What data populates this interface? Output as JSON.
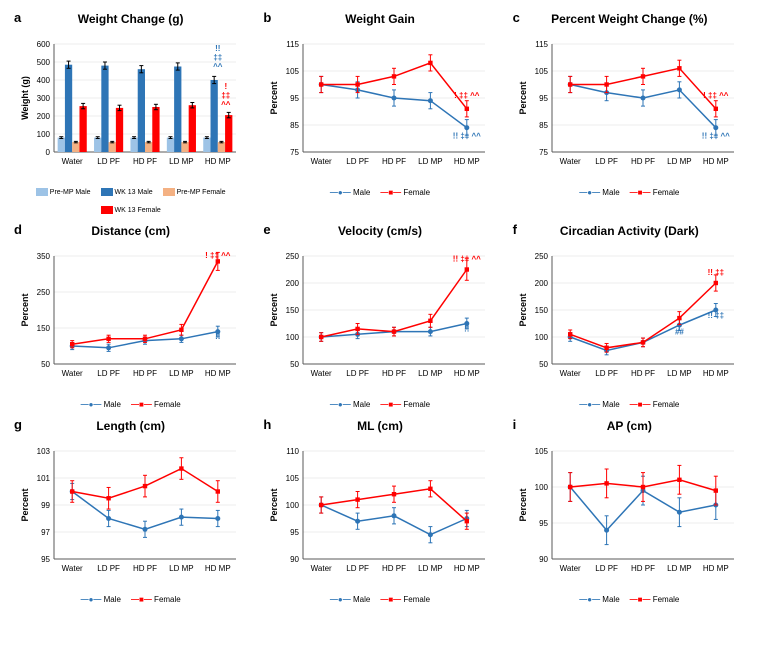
{
  "colors": {
    "male": "#2e75b6",
    "female": "#ff0000",
    "male_light": "#9dc3e6",
    "female_light": "#f4b183",
    "axis": "#595959",
    "grid": "#d9d9d9",
    "bg": "#ffffff"
  },
  "categories": [
    "Water",
    "LD PF",
    "HD PF",
    "LD MP",
    "HD MP"
  ],
  "legend_sex": {
    "male": "Male",
    "female": "Female"
  },
  "panel_a": {
    "label": "a",
    "title": "Weight Change (g)",
    "ylabel": "Weight (g)",
    "ylim": [
      0,
      600
    ],
    "ytick_step": 100,
    "series": [
      {
        "name": "Pre-MP Male",
        "color_key": "male_light",
        "values": [
          80,
          80,
          80,
          80,
          80
        ],
        "err": [
          5,
          5,
          5,
          5,
          5
        ]
      },
      {
        "name": "WK 13 Male",
        "color_key": "male",
        "values": [
          485,
          480,
          460,
          475,
          400
        ],
        "err": [
          20,
          20,
          20,
          20,
          20
        ]
      },
      {
        "name": "Pre-MP Female",
        "color_key": "female_light",
        "values": [
          55,
          55,
          55,
          55,
          55
        ],
        "err": [
          4,
          4,
          4,
          4,
          4
        ]
      },
      {
        "name": "WK 13 Female",
        "color_key": "female",
        "values": [
          255,
          245,
          250,
          260,
          205
        ],
        "err": [
          15,
          15,
          15,
          15,
          15
        ]
      }
    ],
    "annotations": [
      {
        "cat": 4,
        "color_key": "male",
        "lines": [
          "!!",
          "‡‡",
          "^^"
        ],
        "y": 560
      },
      {
        "cat": 4,
        "color_key": "female",
        "lines": [
          "!",
          "‡‡",
          "^^"
        ],
        "y": 350,
        "xoff": 8
      }
    ]
  },
  "line_panels": [
    {
      "key": "b",
      "label": "b",
      "title": "Weight Gain",
      "ylabel": "Percent",
      "ylim": [
        75,
        115
      ],
      "ytick_step": 10,
      "male": {
        "values": [
          100,
          98,
          95,
          94,
          84
        ],
        "err": [
          3,
          3,
          3,
          3,
          3
        ]
      },
      "female": {
        "values": [
          100,
          100,
          103,
          108,
          91
        ],
        "err": [
          3,
          3,
          3,
          3,
          3
        ]
      },
      "annotations": [
        {
          "cat": 4,
          "color_key": "female",
          "text": "! ‡‡ ^^",
          "y": 95
        },
        {
          "cat": 4,
          "color_key": "male",
          "text": "!! ‡‡ ^^",
          "y": 80
        }
      ]
    },
    {
      "key": "c",
      "label": "c",
      "title": "Percent Weight Change (%)",
      "ylabel": "Percent",
      "ylim": [
        75,
        115
      ],
      "ytick_step": 10,
      "male": {
        "values": [
          100,
          97,
          95,
          98,
          84
        ],
        "err": [
          3,
          3,
          3,
          3,
          3
        ]
      },
      "female": {
        "values": [
          100,
          100,
          103,
          106,
          91
        ],
        "err": [
          3,
          3,
          3,
          3,
          3
        ]
      },
      "annotations": [
        {
          "cat": 4,
          "color_key": "female",
          "text": "! ‡‡ ^^",
          "y": 95
        },
        {
          "cat": 4,
          "color_key": "male",
          "text": "!! ‡‡ ^^",
          "y": 80
        }
      ]
    },
    {
      "key": "d",
      "label": "d",
      "title": "Distance (cm)",
      "ylabel": "Percent",
      "ylim": [
        50,
        350
      ],
      "ytick_step": 100,
      "male": {
        "values": [
          100,
          95,
          115,
          120,
          140
        ],
        "err": [
          10,
          10,
          10,
          10,
          15
        ]
      },
      "female": {
        "values": [
          105,
          120,
          120,
          145,
          335
        ],
        "err": [
          10,
          10,
          10,
          15,
          25
        ]
      },
      "annotations": [
        {
          "cat": 4,
          "color_key": "female",
          "text": "! ‡‡ ^^",
          "y": 345
        },
        {
          "cat": 4,
          "color_key": "male",
          "text": "!!",
          "y": 120
        }
      ]
    },
    {
      "key": "e",
      "label": "e",
      "title": "Velocity (cm/s)",
      "ylabel": "Percent",
      "ylim": [
        50,
        250
      ],
      "ytick_step": 50,
      "male": {
        "values": [
          100,
          105,
          110,
          110,
          125
        ],
        "err": [
          8,
          8,
          8,
          8,
          10
        ]
      },
      "female": {
        "values": [
          100,
          115,
          110,
          130,
          225
        ],
        "err": [
          8,
          10,
          8,
          12,
          20
        ]
      },
      "annotations": [
        {
          "cat": 4,
          "color_key": "female",
          "text": "!! ‡‡ ^^",
          "y": 240
        },
        {
          "cat": 4,
          "color_key": "male",
          "text": "!!",
          "y": 110
        }
      ]
    },
    {
      "key": "f",
      "label": "f",
      "title": "Circadian Activity (Dark)",
      "ylabel": "Percent",
      "ylim": [
        50,
        250
      ],
      "ytick_step": 50,
      "male": {
        "values": [
          100,
          75,
          90,
          122,
          150
        ],
        "err": [
          8,
          8,
          8,
          10,
          12
        ]
      },
      "female": {
        "values": [
          105,
          80,
          90,
          135,
          200
        ],
        "err": [
          8,
          8,
          8,
          12,
          15
        ]
      },
      "annotations": [
        {
          "cat": 4,
          "color_key": "female",
          "text": "!! ‡‡",
          "y": 215
        },
        {
          "cat": 4,
          "color_key": "male",
          "text": "!! ‡‡",
          "y": 135
        },
        {
          "cat": 3,
          "color_key": "male",
          "text": "##",
          "y": 105
        }
      ]
    },
    {
      "key": "g",
      "label": "g",
      "title": "Length (cm)",
      "ylabel": "Percent",
      "ylim": [
        95,
        103
      ],
      "ytick_step": 2,
      "male": {
        "values": [
          100,
          98,
          97.2,
          98.1,
          98
        ],
        "err": [
          0.6,
          0.6,
          0.6,
          0.6,
          0.6
        ]
      },
      "female": {
        "values": [
          100,
          99.5,
          100.4,
          101.7,
          100
        ],
        "err": [
          0.8,
          0.8,
          0.8,
          0.8,
          0.8
        ]
      },
      "annotations": []
    },
    {
      "key": "h",
      "label": "h",
      "title": "ML (cm)",
      "ylabel": "Percent",
      "ylim": [
        90,
        110
      ],
      "ytick_step": 5,
      "male": {
        "values": [
          100,
          97,
          98,
          94.5,
          97.5
        ],
        "err": [
          1.5,
          1.5,
          1.5,
          1.5,
          1.5
        ]
      },
      "female": {
        "values": [
          100,
          101,
          102,
          103,
          97
        ],
        "err": [
          1.5,
          1.5,
          1.5,
          1.5,
          1.5
        ]
      },
      "annotations": []
    },
    {
      "key": "i",
      "label": "i",
      "title": "AP (cm)",
      "ylabel": "Percent",
      "ylim": [
        90,
        105
      ],
      "ytick_step": 5,
      "male": {
        "values": [
          100,
          94,
          99.5,
          96.5,
          97.5
        ],
        "err": [
          2,
          2,
          2,
          2,
          2
        ]
      },
      "female": {
        "values": [
          100,
          100.5,
          100,
          101,
          99.5
        ],
        "err": [
          2,
          2,
          2,
          2,
          2
        ]
      },
      "annotations": []
    }
  ]
}
